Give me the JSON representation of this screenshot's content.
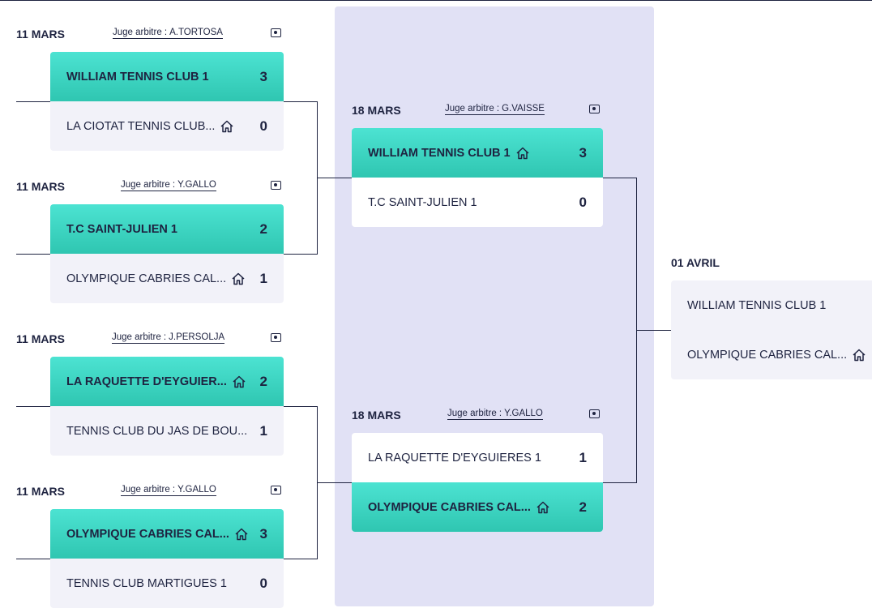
{
  "matches": [
    {
      "date": "11 MARS",
      "judge_label": "Juge arbitre :",
      "judge_name": "A.TORTOSA",
      "video_icon": "video-camera-icon",
      "team1": {
        "name": "WILLIAM TENNIS CLUB 1",
        "score": "3",
        "winner": true,
        "home": false
      },
      "team2": {
        "name": "LA CIOTAT TENNIS CLUB...",
        "score": "0",
        "winner": false,
        "home": true
      }
    },
    {
      "date": "11 MARS",
      "judge_label": "Juge arbitre :",
      "judge_name": "Y.GALLO",
      "video_icon": "video-camera-icon",
      "team1": {
        "name": "T.C SAINT-JULIEN 1",
        "score": "2",
        "winner": true,
        "home": false
      },
      "team2": {
        "name": "OLYMPIQUE CABRIES CAL...",
        "score": "1",
        "winner": false,
        "home": true
      }
    },
    {
      "date": "11 MARS",
      "judge_label": "Juge arbitre :",
      "judge_name": "J.PERSOLJA",
      "video_icon": "video-camera-icon",
      "team1": {
        "name": "LA RAQUETTE D'EYGUIER...",
        "score": "2",
        "winner": true,
        "home": true
      },
      "team2": {
        "name": "TENNIS CLUB DU JAS DE BOU...",
        "score": "1",
        "winner": false,
        "home": false
      }
    },
    {
      "date": "11 MARS",
      "judge_label": "Juge arbitre :",
      "judge_name": "Y.GALLO",
      "video_icon": "video-camera-icon",
      "team1": {
        "name": "OLYMPIQUE CABRIES CAL...",
        "score": "3",
        "winner": true,
        "home": true
      },
      "team2": {
        "name": "TENNIS CLUB MARTIGUES 1",
        "score": "0",
        "winner": false,
        "home": false
      }
    },
    {
      "date": "18 MARS",
      "judge_label": "Juge arbitre :",
      "judge_name": "G.VAISSE",
      "video_icon": "video-camera-icon",
      "team1": {
        "name": "WILLIAM TENNIS CLUB 1",
        "score": "3",
        "winner": true,
        "home": true
      },
      "team2": {
        "name": "T.C SAINT-JULIEN 1",
        "score": "0",
        "winner": false,
        "home": false
      }
    },
    {
      "date": "18 MARS",
      "judge_label": "Juge arbitre :",
      "judge_name": "Y.GALLO",
      "video_icon": "video-camera-icon",
      "team1": {
        "name": "LA RAQUETTE D'EYGUIERES 1",
        "score": "1",
        "winner": false,
        "home": false
      },
      "team2": {
        "name": "OLYMPIQUE CABRIES CAL...",
        "score": "2",
        "winner": true,
        "home": true
      }
    },
    {
      "date": "01 AVRIL",
      "team1": {
        "name": "WILLIAM TENNIS CLUB 1",
        "score": "",
        "winner": false,
        "home": false
      },
      "team2": {
        "name": "OLYMPIQUE CABRIES CAL...",
        "score": "",
        "winner": false,
        "home": true
      }
    }
  ],
  "colors": {
    "winner_bg": "#3fd6c3",
    "round_bg": "#e1e1f5",
    "text": "#1e2340"
  }
}
